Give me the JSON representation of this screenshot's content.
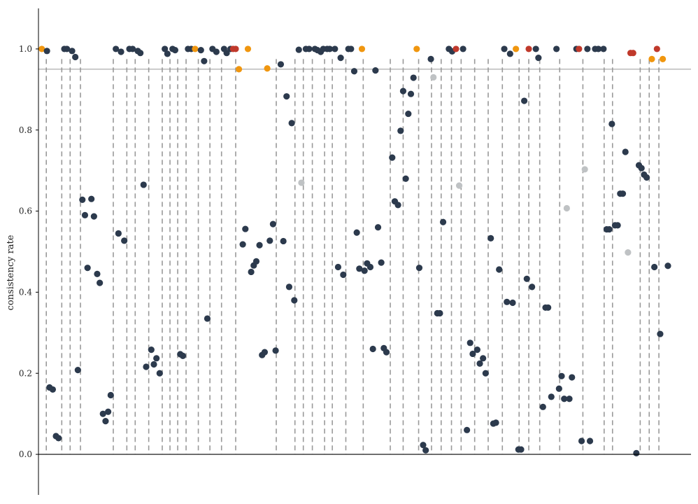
{
  "chart_data": {
    "type": "scatter",
    "title": "",
    "xlabel": "",
    "ylabel": "consistency rate",
    "ylim": [
      -0.1,
      1.1
    ],
    "yticks": [
      "0.0",
      "0.2",
      "0.4",
      "0.6",
      "0.8",
      "1.0"
    ],
    "ytick_values": [
      0.0,
      0.2,
      0.4,
      0.6,
      0.8,
      1.0
    ],
    "xlim": [
      0,
      100
    ],
    "reference_line": 0.95,
    "colors": {
      "default": "#2c3a4d",
      "orange": "#f0960f",
      "red": "#c0392b",
      "gray": "#bfc2c4",
      "divider": "#999999",
      "reference": "#999999",
      "axis": "#000000"
    },
    "dividers": [
      1,
      3.4,
      4.7,
      6.3,
      11.4,
      13.5,
      14.8,
      16.9,
      19,
      20.2,
      21.4,
      22.7,
      24.6,
      26.4,
      28.2,
      30.4,
      36.7,
      39.6,
      40.9,
      42.3,
      44.2,
      45.4,
      47.5,
      50.2,
      54.4,
      56.4,
      58.8,
      60.8,
      62.3,
      63.9,
      65.4,
      67.5,
      69.6,
      71.8,
      74.4,
      75.9,
      77.6,
      80.7,
      84.3,
      87.6,
      88.9,
      93.2,
      94.6,
      96.1
    ],
    "points": [
      {
        "x": 0.3,
        "y": 1.0,
        "c": "orange"
      },
      {
        "x": 1.1,
        "y": 0.995,
        "c": "default"
      },
      {
        "x": 1.5,
        "y": 0.165,
        "c": "default"
      },
      {
        "x": 2.0,
        "y": 0.16,
        "c": "default"
      },
      {
        "x": 2.5,
        "y": 0.045,
        "c": "default"
      },
      {
        "x": 2.9,
        "y": 0.04,
        "c": "default"
      },
      {
        "x": 3.8,
        "y": 1.0,
        "c": "default"
      },
      {
        "x": 4.2,
        "y": 1.0,
        "c": "default"
      },
      {
        "x": 5.0,
        "y": 0.995,
        "c": "default"
      },
      {
        "x": 5.5,
        "y": 0.98,
        "c": "default"
      },
      {
        "x": 5.9,
        "y": 0.208,
        "c": "default"
      },
      {
        "x": 6.6,
        "y": 0.628,
        "c": "default"
      },
      {
        "x": 7.0,
        "y": 0.59,
        "c": "default"
      },
      {
        "x": 7.4,
        "y": 0.46,
        "c": "default"
      },
      {
        "x": 8.0,
        "y": 0.63,
        "c": "default"
      },
      {
        "x": 8.4,
        "y": 0.587,
        "c": "default"
      },
      {
        "x": 8.9,
        "y": 0.445,
        "c": "default"
      },
      {
        "x": 9.3,
        "y": 0.423,
        "c": "default"
      },
      {
        "x": 9.8,
        "y": 0.1,
        "c": "default"
      },
      {
        "x": 10.2,
        "y": 0.082,
        "c": "default"
      },
      {
        "x": 10.6,
        "y": 0.105,
        "c": "default"
      },
      {
        "x": 11.0,
        "y": 0.146,
        "c": "default"
      },
      {
        "x": 11.8,
        "y": 1.0,
        "c": "default"
      },
      {
        "x": 12.2,
        "y": 0.545,
        "c": "default"
      },
      {
        "x": 12.6,
        "y": 0.993,
        "c": "default"
      },
      {
        "x": 13.1,
        "y": 0.527,
        "c": "default"
      },
      {
        "x": 13.9,
        "y": 1.0,
        "c": "default"
      },
      {
        "x": 14.4,
        "y": 1.0,
        "c": "default"
      },
      {
        "x": 15.2,
        "y": 0.995,
        "c": "default"
      },
      {
        "x": 15.6,
        "y": 0.99,
        "c": "default"
      },
      {
        "x": 16.1,
        "y": 0.665,
        "c": "default"
      },
      {
        "x": 16.5,
        "y": 0.216,
        "c": "default"
      },
      {
        "x": 17.3,
        "y": 0.258,
        "c": "default"
      },
      {
        "x": 17.7,
        "y": 0.222,
        "c": "default"
      },
      {
        "x": 18.1,
        "y": 0.237,
        "c": "default"
      },
      {
        "x": 18.6,
        "y": 0.2,
        "c": "default"
      },
      {
        "x": 19.4,
        "y": 1.0,
        "c": "default"
      },
      {
        "x": 19.8,
        "y": 0.988,
        "c": "default"
      },
      {
        "x": 20.6,
        "y": 1.0,
        "c": "default"
      },
      {
        "x": 21.0,
        "y": 0.997,
        "c": "default"
      },
      {
        "x": 21.8,
        "y": 0.247,
        "c": "default"
      },
      {
        "x": 22.2,
        "y": 0.243,
        "c": "default"
      },
      {
        "x": 23.0,
        "y": 1.0,
        "c": "default"
      },
      {
        "x": 23.5,
        "y": 1.0,
        "c": "default"
      },
      {
        "x": 24.1,
        "y": 1.0,
        "c": "orange"
      },
      {
        "x": 25.0,
        "y": 0.997,
        "c": "default"
      },
      {
        "x": 25.5,
        "y": 0.97,
        "c": "default"
      },
      {
        "x": 26.0,
        "y": 0.335,
        "c": "default"
      },
      {
        "x": 26.8,
        "y": 1.0,
        "c": "default"
      },
      {
        "x": 27.4,
        "y": 0.993,
        "c": "default"
      },
      {
        "x": 28.6,
        "y": 1.0,
        "c": "default"
      },
      {
        "x": 29.0,
        "y": 0.99,
        "c": "default"
      },
      {
        "x": 29.6,
        "y": 1.0,
        "c": "default"
      },
      {
        "x": 30.0,
        "y": 1.0,
        "c": "red"
      },
      {
        "x": 30.4,
        "y": 1.0,
        "c": "red"
      },
      {
        "x": 30.9,
        "y": 0.95,
        "c": "orange"
      },
      {
        "x": 31.5,
        "y": 0.518,
        "c": "default"
      },
      {
        "x": 31.9,
        "y": 0.556,
        "c": "default"
      },
      {
        "x": 32.3,
        "y": 1.0,
        "c": "orange"
      },
      {
        "x": 32.8,
        "y": 0.45,
        "c": "default"
      },
      {
        "x": 33.2,
        "y": 0.466,
        "c": "default"
      },
      {
        "x": 33.6,
        "y": 0.476,
        "c": "default"
      },
      {
        "x": 34.1,
        "y": 0.516,
        "c": "default"
      },
      {
        "x": 34.5,
        "y": 0.245,
        "c": "default"
      },
      {
        "x": 34.9,
        "y": 0.252,
        "c": "default"
      },
      {
        "x": 35.3,
        "y": 0.952,
        "c": "orange"
      },
      {
        "x": 35.7,
        "y": 0.527,
        "c": "default"
      },
      {
        "x": 36.2,
        "y": 0.568,
        "c": "default"
      },
      {
        "x": 36.6,
        "y": 0.256,
        "c": "default"
      },
      {
        "x": 37.4,
        "y": 0.962,
        "c": "default"
      },
      {
        "x": 37.8,
        "y": 0.526,
        "c": "default"
      },
      {
        "x": 38.3,
        "y": 0.883,
        "c": "default"
      },
      {
        "x": 38.7,
        "y": 0.413,
        "c": "default"
      },
      {
        "x": 39.1,
        "y": 0.817,
        "c": "default"
      },
      {
        "x": 39.5,
        "y": 0.38,
        "c": "default"
      },
      {
        "x": 40.2,
        "y": 0.998,
        "c": "default"
      },
      {
        "x": 40.6,
        "y": 0.67,
        "c": "gray"
      },
      {
        "x": 41.3,
        "y": 1.0,
        "c": "default"
      },
      {
        "x": 41.8,
        "y": 1.0,
        "c": "default"
      },
      {
        "x": 42.7,
        "y": 1.0,
        "c": "default"
      },
      {
        "x": 43.1,
        "y": 0.997,
        "c": "default"
      },
      {
        "x": 43.6,
        "y": 0.993,
        "c": "default"
      },
      {
        "x": 44.0,
        "y": 1.0,
        "c": "default"
      },
      {
        "x": 44.6,
        "y": 1.0,
        "c": "default"
      },
      {
        "x": 45.0,
        "y": 1.0,
        "c": "default"
      },
      {
        "x": 45.8,
        "y": 1.0,
        "c": "default"
      },
      {
        "x": 46.3,
        "y": 0.462,
        "c": "default"
      },
      {
        "x": 46.7,
        "y": 0.978,
        "c": "default"
      },
      {
        "x": 47.1,
        "y": 0.443,
        "c": "default"
      },
      {
        "x": 47.9,
        "y": 1.0,
        "c": "default"
      },
      {
        "x": 48.3,
        "y": 1.0,
        "c": "default"
      },
      {
        "x": 48.8,
        "y": 0.945,
        "c": "default"
      },
      {
        "x": 49.2,
        "y": 0.547,
        "c": "default"
      },
      {
        "x": 49.6,
        "y": 0.458,
        "c": "default"
      },
      {
        "x": 50.0,
        "y": 1.0,
        "c": "orange"
      },
      {
        "x": 50.4,
        "y": 0.453,
        "c": "default"
      },
      {
        "x": 50.8,
        "y": 0.471,
        "c": "default"
      },
      {
        "x": 51.3,
        "y": 0.462,
        "c": "default"
      },
      {
        "x": 51.7,
        "y": 0.26,
        "c": "default"
      },
      {
        "x": 52.1,
        "y": 0.947,
        "c": "default"
      },
      {
        "x": 52.5,
        "y": 0.56,
        "c": "default"
      },
      {
        "x": 53.0,
        "y": 0.473,
        "c": "default"
      },
      {
        "x": 53.4,
        "y": 0.262,
        "c": "default"
      },
      {
        "x": 53.8,
        "y": 0.252,
        "c": "default"
      },
      {
        "x": 54.7,
        "y": 0.732,
        "c": "default"
      },
      {
        "x": 55.1,
        "y": 0.624,
        "c": "default"
      },
      {
        "x": 55.6,
        "y": 0.615,
        "c": "default"
      },
      {
        "x": 56.0,
        "y": 0.798,
        "c": "default"
      },
      {
        "x": 56.4,
        "y": 0.896,
        "c": "default"
      },
      {
        "x": 56.8,
        "y": 0.68,
        "c": "default"
      },
      {
        "x": 57.2,
        "y": 0.84,
        "c": "default"
      },
      {
        "x": 57.6,
        "y": 0.889,
        "c": "default"
      },
      {
        "x": 58.0,
        "y": 0.929,
        "c": "default"
      },
      {
        "x": 58.5,
        "y": 1.0,
        "c": "orange"
      },
      {
        "x": 58.9,
        "y": 0.46,
        "c": "default"
      },
      {
        "x": 59.5,
        "y": 0.023,
        "c": "default"
      },
      {
        "x": 59.9,
        "y": 0.01,
        "c": "default"
      },
      {
        "x": 60.7,
        "y": 0.975,
        "c": "default"
      },
      {
        "x": 61.1,
        "y": 0.93,
        "c": "gray"
      },
      {
        "x": 61.7,
        "y": 0.348,
        "c": "default"
      },
      {
        "x": 62.1,
        "y": 0.348,
        "c": "default"
      },
      {
        "x": 62.6,
        "y": 0.573,
        "c": "default"
      },
      {
        "x": 63.5,
        "y": 1.0,
        "c": "default"
      },
      {
        "x": 64.0,
        "y": 0.994,
        "c": "default"
      },
      {
        "x": 64.6,
        "y": 1.0,
        "c": "red"
      },
      {
        "x": 65.1,
        "y": 0.663,
        "c": "gray"
      },
      {
        "x": 65.7,
        "y": 1.0,
        "c": "default"
      },
      {
        "x": 66.3,
        "y": 0.06,
        "c": "default"
      },
      {
        "x": 66.8,
        "y": 0.275,
        "c": "default"
      },
      {
        "x": 67.2,
        "y": 0.248,
        "c": "default"
      },
      {
        "x": 67.9,
        "y": 0.258,
        "c": "default"
      },
      {
        "x": 68.3,
        "y": 0.224,
        "c": "default"
      },
      {
        "x": 68.8,
        "y": 0.237,
        "c": "default"
      },
      {
        "x": 69.2,
        "y": 0.2,
        "c": "default"
      },
      {
        "x": 70.0,
        "y": 0.533,
        "c": "default"
      },
      {
        "x": 70.4,
        "y": 0.076,
        "c": "default"
      },
      {
        "x": 70.8,
        "y": 0.078,
        "c": "default"
      },
      {
        "x": 71.3,
        "y": 0.456,
        "c": "default"
      },
      {
        "x": 72.1,
        "y": 1.0,
        "c": "default"
      },
      {
        "x": 72.5,
        "y": 0.376,
        "c": "default"
      },
      {
        "x": 73.0,
        "y": 0.988,
        "c": "default"
      },
      {
        "x": 73.4,
        "y": 0.374,
        "c": "default"
      },
      {
        "x": 73.9,
        "y": 1.0,
        "c": "orange"
      },
      {
        "x": 74.3,
        "y": 0.012,
        "c": "default"
      },
      {
        "x": 74.7,
        "y": 0.012,
        "c": "default"
      },
      {
        "x": 75.2,
        "y": 0.872,
        "c": "default"
      },
      {
        "x": 75.6,
        "y": 0.433,
        "c": "default"
      },
      {
        "x": 75.9,
        "y": 1.0,
        "c": "red"
      },
      {
        "x": 76.4,
        "y": 0.413,
        "c": "default"
      },
      {
        "x": 77.0,
        "y": 1.0,
        "c": "default"
      },
      {
        "x": 77.4,
        "y": 0.978,
        "c": "default"
      },
      {
        "x": 78.1,
        "y": 0.117,
        "c": "default"
      },
      {
        "x": 78.5,
        "y": 0.362,
        "c": "default"
      },
      {
        "x": 78.9,
        "y": 0.362,
        "c": "default"
      },
      {
        "x": 79.4,
        "y": 0.142,
        "c": "default"
      },
      {
        "x": 80.2,
        "y": 1.0,
        "c": "default"
      },
      {
        "x": 80.6,
        "y": 0.162,
        "c": "default"
      },
      {
        "x": 81.0,
        "y": 0.193,
        "c": "default"
      },
      {
        "x": 81.4,
        "y": 0.137,
        "c": "default"
      },
      {
        "x": 81.8,
        "y": 0.607,
        "c": "gray"
      },
      {
        "x": 82.2,
        "y": 0.137,
        "c": "default"
      },
      {
        "x": 82.6,
        "y": 0.19,
        "c": "default"
      },
      {
        "x": 83.3,
        "y": 1.0,
        "c": "default"
      },
      {
        "x": 83.7,
        "y": 1.0,
        "c": "red"
      },
      {
        "x": 84.1,
        "y": 0.033,
        "c": "default"
      },
      {
        "x": 84.6,
        "y": 0.703,
        "c": "gray"
      },
      {
        "x": 85.0,
        "y": 1.0,
        "c": "default"
      },
      {
        "x": 85.4,
        "y": 0.033,
        "c": "default"
      },
      {
        "x": 86.2,
        "y": 1.0,
        "c": "default"
      },
      {
        "x": 86.7,
        "y": 1.0,
        "c": "default"
      },
      {
        "x": 87.5,
        "y": 1.0,
        "c": "default"
      },
      {
        "x": 88.0,
        "y": 0.555,
        "c": "default"
      },
      {
        "x": 88.4,
        "y": 0.555,
        "c": "default"
      },
      {
        "x": 88.8,
        "y": 0.815,
        "c": "default"
      },
      {
        "x": 89.3,
        "y": 0.565,
        "c": "default"
      },
      {
        "x": 89.7,
        "y": 0.565,
        "c": "default"
      },
      {
        "x": 90.1,
        "y": 0.643,
        "c": "default"
      },
      {
        "x": 90.5,
        "y": 0.643,
        "c": "default"
      },
      {
        "x": 90.9,
        "y": 0.746,
        "c": "default"
      },
      {
        "x": 91.3,
        "y": 0.498,
        "c": "gray"
      },
      {
        "x": 91.7,
        "y": 0.99,
        "c": "red"
      },
      {
        "x": 92.1,
        "y": 0.99,
        "c": "red"
      },
      {
        "x": 92.6,
        "y": 0.003,
        "c": "default"
      },
      {
        "x": 93.0,
        "y": 0.713,
        "c": "default"
      },
      {
        "x": 93.4,
        "y": 0.706,
        "c": "default"
      },
      {
        "x": 93.8,
        "y": 0.69,
        "c": "default"
      },
      {
        "x": 94.2,
        "y": 0.683,
        "c": "default"
      },
      {
        "x": 95.0,
        "y": 0.975,
        "c": "orange"
      },
      {
        "x": 95.4,
        "y": 0.462,
        "c": "default"
      },
      {
        "x": 95.8,
        "y": 1.0,
        "c": "red"
      },
      {
        "x": 96.3,
        "y": 0.297,
        "c": "default"
      },
      {
        "x": 96.7,
        "y": 0.975,
        "c": "orange"
      },
      {
        "x": 97.5,
        "y": 0.465,
        "c": "default"
      }
    ]
  }
}
